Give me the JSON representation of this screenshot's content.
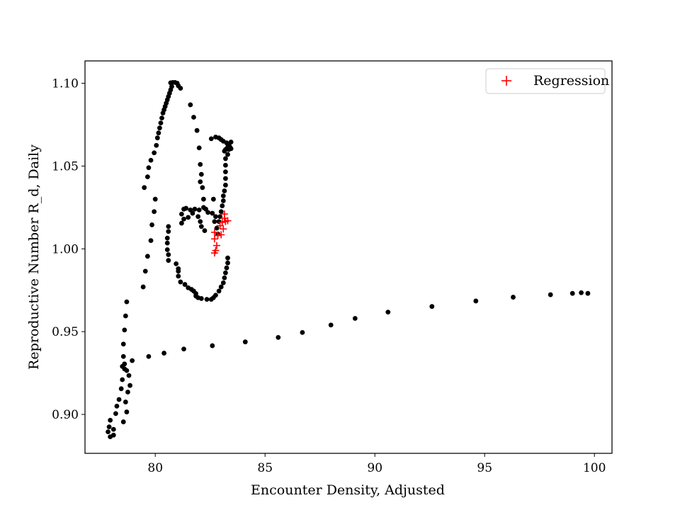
{
  "chart_data": {
    "type": "scatter",
    "xlabel": "Encounter Density, Adjusted",
    "ylabel": "Reproductive Number R_d, Daily",
    "xlim": [
      76.8,
      100.8
    ],
    "ylim": [
      0.8765,
      1.1135
    ],
    "x_ticks": [
      80,
      85,
      90,
      95,
      100
    ],
    "x_tick_labels": [
      "80",
      "85",
      "90",
      "95",
      "100"
    ],
    "y_ticks": [
      0.9,
      0.95,
      1.0,
      1.05,
      1.1
    ],
    "y_tick_labels": [
      "0.90",
      "0.95",
      "1.00",
      "1.05",
      "1.10"
    ],
    "grid": false,
    "legend": {
      "position": "top-right",
      "entries": [
        {
          "label": "Regression",
          "marker": "+",
          "color": "#ff0000"
        }
      ]
    },
    "series": [
      {
        "marker": "circle",
        "color": "#000000",
        "points": [
          [
            77.85,
            0.8895
          ],
          [
            77.95,
            0.8865
          ],
          [
            78.1,
            0.8875
          ],
          [
            78.1,
            0.891
          ],
          [
            77.9,
            0.8925
          ],
          [
            77.95,
            0.8965
          ],
          [
            78.2,
            0.9005
          ],
          [
            78.25,
            0.905
          ],
          [
            78.35,
            0.909
          ],
          [
            78.45,
            0.9155
          ],
          [
            78.5,
            0.921
          ],
          [
            78.5,
            0.929
          ],
          [
            78.55,
            0.935
          ],
          [
            78.55,
            0.9425
          ],
          [
            78.6,
            0.951
          ],
          [
            78.65,
            0.9595
          ],
          [
            78.7,
            0.968
          ],
          [
            78.6,
            0.9275
          ],
          [
            78.6,
            0.9305
          ],
          [
            78.7,
            0.9265
          ],
          [
            78.8,
            0.9235
          ],
          [
            78.85,
            0.9175
          ],
          [
            78.75,
            0.9135
          ],
          [
            78.65,
            0.9075
          ],
          [
            78.7,
            0.9015
          ],
          [
            78.55,
            0.8955
          ],
          [
            78.95,
            0.9325
          ],
          [
            79.7,
            0.935
          ],
          [
            80.4,
            0.937
          ],
          [
            81.3,
            0.9395
          ],
          [
            82.6,
            0.9415
          ],
          [
            84.1,
            0.9438
          ],
          [
            85.6,
            0.9465
          ],
          [
            86.7,
            0.9495
          ],
          [
            88.0,
            0.954
          ],
          [
            89.1,
            0.958
          ],
          [
            90.6,
            0.9618
          ],
          [
            92.6,
            0.9652
          ],
          [
            94.6,
            0.9685
          ],
          [
            96.3,
            0.9708
          ],
          [
            98.0,
            0.9723
          ],
          [
            99.0,
            0.9731
          ],
          [
            99.4,
            0.9735
          ],
          [
            99.7,
            0.9731
          ],
          [
            79.45,
            0.977
          ],
          [
            79.55,
            0.9865
          ],
          [
            79.65,
            0.9955
          ],
          [
            79.8,
            1.005
          ],
          [
            79.85,
            1.0145
          ],
          [
            79.95,
            1.0225
          ],
          [
            80.0,
            1.03
          ],
          [
            79.5,
            1.037
          ],
          [
            79.65,
            1.0435
          ],
          [
            79.7,
            1.049
          ],
          [
            79.8,
            1.0535
          ],
          [
            79.95,
            1.058
          ],
          [
            80.05,
            1.0625
          ],
          [
            80.1,
            1.067
          ],
          [
            80.15,
            1.07
          ],
          [
            80.2,
            1.073
          ],
          [
            80.25,
            1.076
          ],
          [
            80.3,
            1.079
          ],
          [
            80.35,
            1.082
          ],
          [
            80.4,
            1.084
          ],
          [
            80.45,
            1.086
          ],
          [
            80.5,
            1.088
          ],
          [
            80.55,
            1.09
          ],
          [
            80.6,
            1.092
          ],
          [
            80.65,
            1.094
          ],
          [
            80.7,
            1.096
          ],
          [
            80.75,
            1.098
          ],
          [
            80.7,
            1.1003
          ],
          [
            80.8,
            1.1005
          ],
          [
            80.9,
            1.1005
          ],
          [
            81.0,
            1.1
          ],
          [
            81.05,
            1.0985
          ],
          [
            81.15,
            1.097
          ],
          [
            81.6,
            1.087
          ],
          [
            81.75,
            1.0795
          ],
          [
            81.9,
            1.0715
          ],
          [
            82.0,
            1.061
          ],
          [
            82.05,
            1.051
          ],
          [
            82.1,
            1.045
          ],
          [
            82.05,
            1.0405
          ],
          [
            82.15,
            1.037
          ],
          [
            82.2,
            1.03
          ],
          [
            82.2,
            1.025
          ],
          [
            82.3,
            1.024
          ],
          [
            82.4,
            1.022
          ],
          [
            82.6,
            1.0215
          ],
          [
            82.75,
            1.0195
          ],
          [
            82.7,
            1.0165
          ],
          [
            82.0,
            1.0235
          ],
          [
            81.8,
            1.024
          ],
          [
            81.6,
            1.0235
          ],
          [
            81.4,
            1.0245
          ],
          [
            81.3,
            1.024
          ],
          [
            81.2,
            1.021
          ],
          [
            81.3,
            1.018
          ],
          [
            81.2,
            1.0155
          ],
          [
            81.5,
            1.019
          ],
          [
            81.7,
            1.0215
          ],
          [
            81.95,
            1.0195
          ],
          [
            82.05,
            1.0165
          ],
          [
            82.1,
            1.0135
          ],
          [
            82.25,
            1.011
          ],
          [
            80.6,
            1.0135
          ],
          [
            80.6,
            1.0105
          ],
          [
            80.55,
            1.0065
          ],
          [
            80.55,
            1.0035
          ],
          [
            80.55,
            0.9995
          ],
          [
            80.6,
            0.9965
          ],
          [
            80.6,
            0.993
          ],
          [
            80.95,
            0.991
          ],
          [
            81.05,
            0.988
          ],
          [
            81.05,
            0.9865
          ],
          [
            81.05,
            0.9835
          ],
          [
            81.15,
            0.98
          ],
          [
            81.35,
            0.9785
          ],
          [
            81.5,
            0.9765
          ],
          [
            81.65,
            0.9755
          ],
          [
            81.75,
            0.9745
          ],
          [
            81.85,
            0.973
          ],
          [
            81.85,
            0.9715
          ],
          [
            81.95,
            0.9705
          ],
          [
            82.1,
            0.97
          ],
          [
            82.35,
            0.9695
          ],
          [
            82.55,
            0.9695
          ],
          [
            82.65,
            0.9705
          ],
          [
            82.75,
            0.972
          ],
          [
            82.9,
            0.9745
          ],
          [
            83.0,
            0.977
          ],
          [
            83.1,
            0.9795
          ],
          [
            83.15,
            0.9825
          ],
          [
            83.2,
            0.9855
          ],
          [
            83.25,
            0.9885
          ],
          [
            83.3,
            0.9915
          ],
          [
            83.3,
            0.9945
          ],
          [
            82.65,
            1.03
          ],
          [
            82.55,
            1.0665
          ],
          [
            82.75,
            1.0675
          ],
          [
            82.9,
            1.067
          ],
          [
            83.0,
            1.066
          ],
          [
            83.1,
            1.065
          ],
          [
            83.25,
            1.064
          ],
          [
            83.35,
            1.063
          ],
          [
            83.3,
            1.0615
          ],
          [
            83.2,
            1.06
          ],
          [
            83.15,
            1.059
          ],
          [
            83.35,
            1.06
          ],
          [
            83.4,
            1.0615
          ],
          [
            83.45,
            1.0645
          ],
          [
            83.45,
            1.0605
          ],
          [
            83.3,
            1.057
          ],
          [
            83.2,
            1.0545
          ],
          [
            83.2,
            1.0505
          ],
          [
            83.2,
            1.0465
          ],
          [
            83.2,
            1.0425
          ],
          [
            83.2,
            1.0385
          ],
          [
            83.15,
            1.035
          ],
          [
            83.1,
            1.032
          ],
          [
            83.1,
            1.029
          ],
          [
            83.05,
            1.026
          ],
          [
            83.0,
            1.0225
          ],
          [
            82.95,
            1.0195
          ],
          [
            82.9,
            1.0165
          ],
          [
            82.8,
            1.0125
          ],
          [
            82.85,
            1.009
          ]
        ]
      },
      {
        "name": "Regression",
        "marker": "+",
        "color": "#ff0000",
        "points": [
          [
            82.7,
            0.9975
          ],
          [
            82.75,
            0.999
          ],
          [
            82.8,
            1.002
          ],
          [
            82.7,
            1.006
          ],
          [
            82.85,
            1.008
          ],
          [
            82.7,
            1.01
          ],
          [
            83.0,
            1.0085
          ],
          [
            83.1,
            1.012
          ],
          [
            82.95,
            1.014
          ],
          [
            83.05,
            1.016
          ],
          [
            83.2,
            1.0165
          ],
          [
            83.3,
            1.017
          ],
          [
            83.15,
            1.0185
          ],
          [
            83.15,
            1.021
          ]
        ]
      }
    ]
  }
}
